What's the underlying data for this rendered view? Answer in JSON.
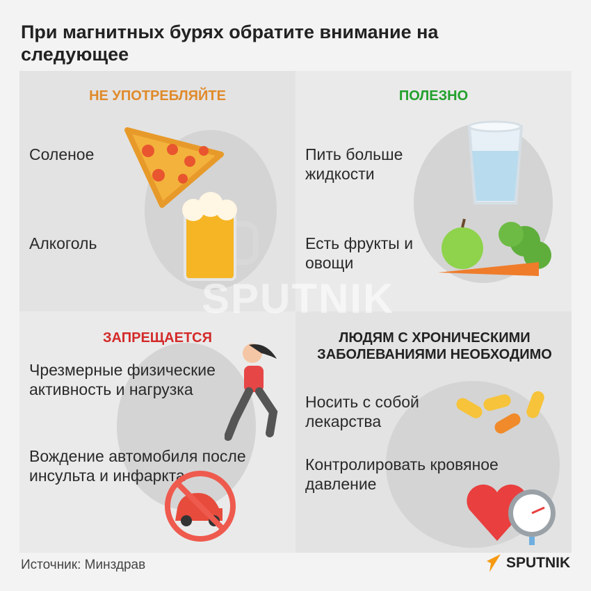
{
  "title": "При магнитных бурях обратите внимание на следующее",
  "panels": [
    {
      "heading": "НЕ УПОТРЕБЛЯЙТЕ",
      "color": "#e08a2a",
      "items": [
        "Соленое",
        "Алкоголь"
      ]
    },
    {
      "heading": "ПОЛЕЗНО",
      "color": "#22a02c",
      "items": [
        "Пить больше жидкости",
        "Есть фрукты и овощи"
      ]
    },
    {
      "heading": "ЗАПРЕЩАЕТСЯ",
      "color": "#d42a2a",
      "items": [
        "Чрезмерные физические активность и нагрузка",
        "Вождение автомобиля после инсульта и инфаркта"
      ]
    },
    {
      "heading": "ЛЮДЯМ С ХРОНИЧЕСКИМИ ЗАБОЛЕВАНИЯМИ НЕОБХОДИМО",
      "color": "#222222",
      "items": [
        "Носить с собой лекарства",
        "Контролировать кровяное давление"
      ]
    }
  ],
  "watermark": "SPUTNIK",
  "source": "Источник: Минздрав",
  "logo": "SPUTNIK"
}
